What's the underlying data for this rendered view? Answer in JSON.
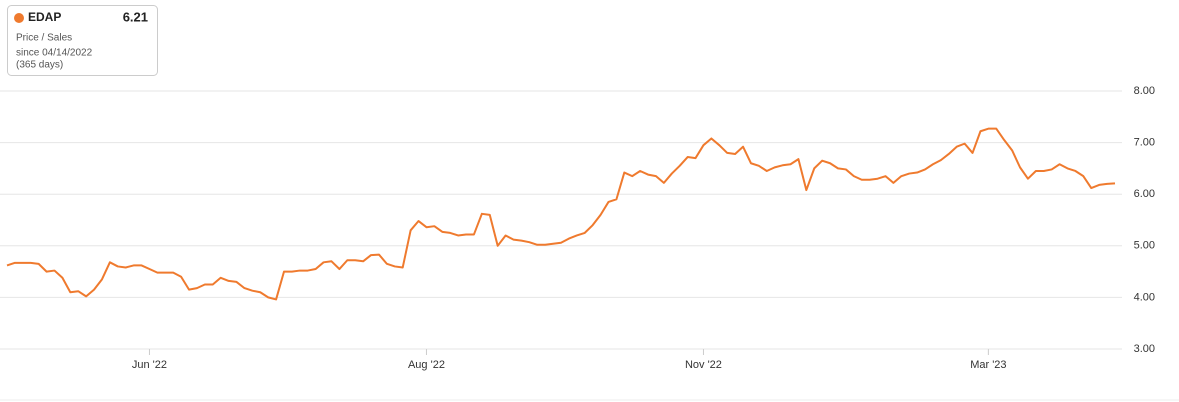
{
  "chart_data": {
    "type": "line",
    "legend_box": {
      "metric": "Price / Sales",
      "period": "since 04/14/2022",
      "days": "(365 days)"
    },
    "categories": [
      null,
      null,
      null,
      null,
      null,
      null,
      null,
      null,
      null,
      null,
      null,
      null,
      null,
      null,
      null,
      null,
      null,
      null,
      "Jun '22",
      null,
      null,
      null,
      null,
      null,
      null,
      null,
      null,
      null,
      null,
      null,
      null,
      null,
      null,
      null,
      null,
      null,
      null,
      null,
      null,
      null,
      null,
      null,
      null,
      null,
      null,
      null,
      null,
      null,
      null,
      null,
      null,
      null,
      null,
      "Aug '22",
      null,
      null,
      null,
      null,
      null,
      null,
      null,
      null,
      null,
      null,
      null,
      null,
      null,
      null,
      null,
      null,
      null,
      null,
      null,
      null,
      null,
      null,
      null,
      null,
      null,
      null,
      null,
      null,
      null,
      null,
      null,
      null,
      null,
      null,
      "Nov '22",
      null,
      null,
      null,
      null,
      null,
      null,
      null,
      null,
      null,
      null,
      null,
      null,
      null,
      null,
      null,
      null,
      null,
      null,
      null,
      null,
      null,
      null,
      null,
      null,
      null,
      null,
      null,
      null,
      null,
      null,
      null,
      null,
      null,
      null,
      null,
      "Mar '23",
      null,
      null,
      null,
      null,
      null,
      null,
      null,
      null,
      null,
      null,
      null,
      null,
      null,
      null,
      null,
      null
    ],
    "series": [
      {
        "name": "EDAP",
        "color": "#ef7a2e",
        "values": [
          4.62,
          4.67,
          4.67,
          4.67,
          4.65,
          4.5,
          4.52,
          4.38,
          4.1,
          4.12,
          4.02,
          4.15,
          4.35,
          4.68,
          4.6,
          4.58,
          4.62,
          4.62,
          4.55,
          4.48,
          4.48,
          4.48,
          4.4,
          4.15,
          4.18,
          4.25,
          4.25,
          4.38,
          4.32,
          4.3,
          4.18,
          4.13,
          4.1,
          4.0,
          3.96,
          4.5,
          4.5,
          4.52,
          4.52,
          4.55,
          4.68,
          4.7,
          4.55,
          4.72,
          4.72,
          4.7,
          4.82,
          4.83,
          4.65,
          4.6,
          4.58,
          5.3,
          5.48,
          5.36,
          5.38,
          5.27,
          5.25,
          5.2,
          5.22,
          5.22,
          5.62,
          5.6,
          5.0,
          5.2,
          5.12,
          5.1,
          5.07,
          5.02,
          5.02,
          5.04,
          5.06,
          5.14,
          5.2,
          5.25,
          5.4,
          5.6,
          5.85,
          5.9,
          6.42,
          6.35,
          6.45,
          6.38,
          6.35,
          6.22,
          6.4,
          6.55,
          6.72,
          6.7,
          6.95,
          7.08,
          6.95,
          6.8,
          6.78,
          6.92,
          6.6,
          6.55,
          6.45,
          6.52,
          6.56,
          6.58,
          6.68,
          6.08,
          6.5,
          6.65,
          6.6,
          6.5,
          6.48,
          6.35,
          6.28,
          6.28,
          6.3,
          6.35,
          6.22,
          6.35,
          6.4,
          6.42,
          6.48,
          6.58,
          6.66,
          6.78,
          6.92,
          6.98,
          6.8,
          7.22,
          7.27,
          7.27,
          7.05,
          6.85,
          6.52,
          6.3,
          6.45,
          6.45,
          6.48,
          6.58,
          6.5,
          6.45,
          6.35,
          6.12,
          6.18,
          6.2,
          6.21
        ]
      }
    ],
    "ylim": [
      3,
      8
    ],
    "yticks": [
      {
        "value": 3,
        "label": "3.00"
      },
      {
        "value": 4,
        "label": "4.00"
      },
      {
        "value": 5,
        "label": "5.00"
      },
      {
        "value": 6,
        "label": "6.00"
      },
      {
        "value": 7,
        "label": "7.00"
      },
      {
        "value": 8,
        "label": "8.00"
      }
    ],
    "grid": true
  }
}
